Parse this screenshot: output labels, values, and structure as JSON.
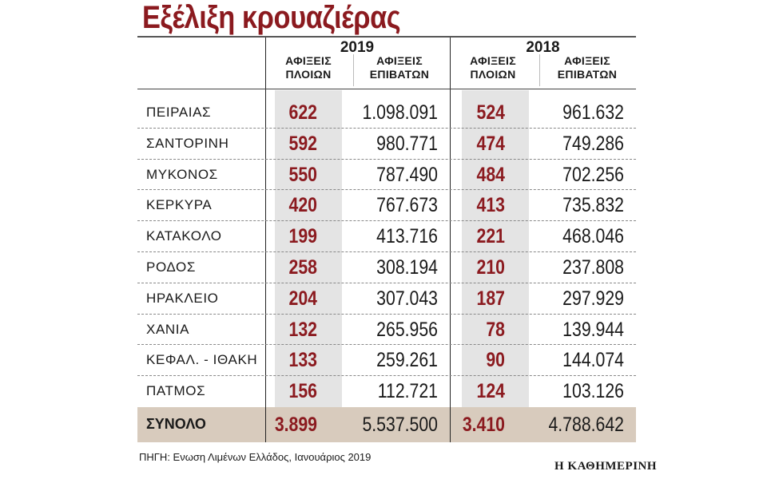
{
  "title": "Εξέλιξη κρουαζιέρας",
  "chart_data": {
    "type": "table",
    "years": [
      "2019",
      "2018"
    ],
    "column_headers": [
      "ΑΦΙΞΕΙΣ ΠΛΟΙΩΝ",
      "ΑΦΙΞΕΙΣ ΕΠΙΒΑΤΩΝ",
      "ΑΦΙΞΕΙΣ ΠΛΟΙΩΝ",
      "ΑΦΙΞΕΙΣ ΕΠΙΒΑΤΩΝ"
    ],
    "rows": [
      {
        "label": "ΠΕΙΡΑΙΑΣ",
        "values": [
          "622",
          "1.098.091",
          "524",
          "961.632"
        ]
      },
      {
        "label": "ΣΑΝΤΟΡΙΝΗ",
        "values": [
          "592",
          "980.771",
          "474",
          "749.286"
        ]
      },
      {
        "label": "ΜΥΚΟΝΟΣ",
        "values": [
          "550",
          "787.490",
          "484",
          "702.256"
        ]
      },
      {
        "label": "ΚΕΡΚΥΡΑ",
        "values": [
          "420",
          "767.673",
          "413",
          "735.832"
        ]
      },
      {
        "label": "ΚΑΤΑΚΟΛΟ",
        "values": [
          "199",
          "413.716",
          "221",
          "468.046"
        ]
      },
      {
        "label": "ΡΟΔΟΣ",
        "values": [
          "258",
          "308.194",
          "210",
          "237.808"
        ]
      },
      {
        "label": "ΗΡΑΚΛΕΙΟ",
        "values": [
          "204",
          "307.043",
          "187",
          "297.929"
        ]
      },
      {
        "label": "ΧΑΝΙΑ",
        "values": [
          "132",
          "265.956",
          "78",
          "139.944"
        ]
      },
      {
        "label": "ΚΕΦΑΛ. - ΙΘΑΚΗ",
        "values": [
          "133",
          "259.261",
          "90",
          "144.074"
        ]
      },
      {
        "label": "ΠΑΤΜΟΣ",
        "values": [
          "156",
          "112.721",
          "124",
          "103.126"
        ]
      }
    ],
    "total": {
      "label": "ΣΥΝΟΛΟ",
      "values": [
        "3.899",
        "5.537.500",
        "3.410",
        "4.788.642"
      ]
    },
    "source": "ΠΗΓΗ: Ενωση Λιμένων Ελλάδος, Ιανουάριος 2019"
  },
  "credit": "Η ΚΑΘΗΜΕΡΙΝΗ",
  "colors": {
    "accent": "#8b1a1f",
    "shade": "#e4e4e4",
    "total_band": "#d8cbbd"
  }
}
